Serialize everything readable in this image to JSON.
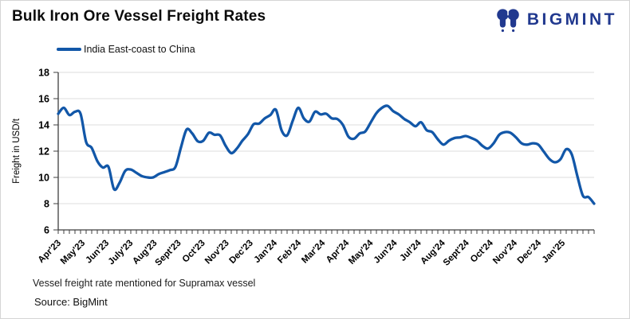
{
  "header": {
    "title": "Bulk Iron Ore Vessel Freight Rates",
    "logo_text": "BIGMINT"
  },
  "legend": {
    "label": "India East-coast to China"
  },
  "chart_data": {
    "type": "line",
    "title": "Bulk Iron Ore Vessel Freight Rates",
    "ylabel": "Freight in USD/t",
    "ylim": [
      6,
      18
    ],
    "yticks": [
      6,
      8,
      10,
      12,
      14,
      16,
      18
    ],
    "grid": "horizontal",
    "legend_position": "top-left",
    "x_tick_labels": [
      "Apr'23",
      "May'23",
      "Jun'23",
      "July'23",
      "Aug'23",
      "Sept'23",
      "Oct'23",
      "Nov'23",
      "Dec'23",
      "Jan'24",
      "Feb'24",
      "Mar'24",
      "Apr'24",
      "May'24",
      "Jun'24",
      "Jul'24",
      "Aug'24",
      "Sept'24",
      "Oct'24",
      "Nov'24",
      "Dec'24",
      "Jan'25"
    ],
    "x_unit": "week",
    "series": [
      {
        "name": "India East-coast to China",
        "color": "#1257a8",
        "values": [
          14.85,
          15.3,
          14.75,
          15.0,
          14.85,
          12.7,
          12.25,
          11.25,
          10.75,
          10.8,
          9.1,
          9.6,
          10.5,
          10.6,
          10.35,
          10.1,
          10.0,
          10.0,
          10.25,
          10.4,
          10.55,
          10.8,
          12.3,
          13.65,
          13.35,
          12.75,
          12.8,
          13.4,
          13.25,
          13.2,
          12.4,
          11.85,
          12.2,
          12.8,
          13.3,
          14.05,
          14.1,
          14.5,
          14.75,
          15.15,
          13.6,
          13.2,
          14.3,
          15.3,
          14.5,
          14.25,
          15.0,
          14.8,
          14.85,
          14.5,
          14.45,
          14.0,
          13.1,
          12.95,
          13.35,
          13.5,
          14.2,
          14.9,
          15.3,
          15.45,
          15.05,
          14.8,
          14.45,
          14.2,
          13.9,
          14.2,
          13.6,
          13.45,
          12.9,
          12.5,
          12.8,
          13.0,
          13.05,
          13.15,
          13.0,
          12.8,
          12.4,
          12.2,
          12.6,
          13.25,
          13.45,
          13.4,
          13.05,
          12.6,
          12.5,
          12.6,
          12.5,
          11.95,
          11.4,
          11.15,
          11.4,
          12.15,
          11.75,
          10.1,
          8.6,
          8.5,
          8.0
        ]
      }
    ]
  },
  "footnotes": {
    "note": "Vessel freight rate mentioned for Supramax vessel",
    "source": "Source:  BigMint"
  },
  "colors": {
    "line_blue": "#1257a8",
    "brand_navy": "#21398f"
  }
}
